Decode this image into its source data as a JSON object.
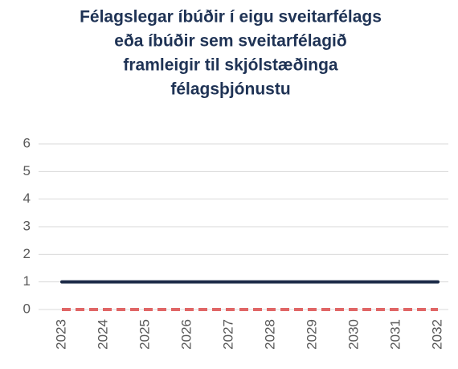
{
  "chart_data": {
    "type": "line",
    "title": [
      "Félagslegar íbúðir í eigu sveitarfélags",
      "eða íbúðir sem sveitarfélagið",
      "framleigir til skjólstæðinga",
      "félagsþjónustu"
    ],
    "categories": [
      "2023",
      "2024",
      "2025",
      "2026",
      "2027",
      "2028",
      "2029",
      "2030",
      "2031",
      "2032"
    ],
    "series": [
      {
        "color": "#1b2a47",
        "dash": false,
        "values": [
          1,
          1,
          1,
          1,
          1,
          1,
          1,
          1,
          1,
          1
        ]
      },
      {
        "color": "#e06666",
        "dash": true,
        "values": [
          0,
          0,
          0,
          0,
          0,
          0,
          0,
          0,
          0,
          0
        ]
      }
    ],
    "ylim": [
      0,
      6
    ],
    "yticks": [
      0,
      1,
      2,
      3,
      4,
      5,
      6
    ],
    "grid": true
  }
}
